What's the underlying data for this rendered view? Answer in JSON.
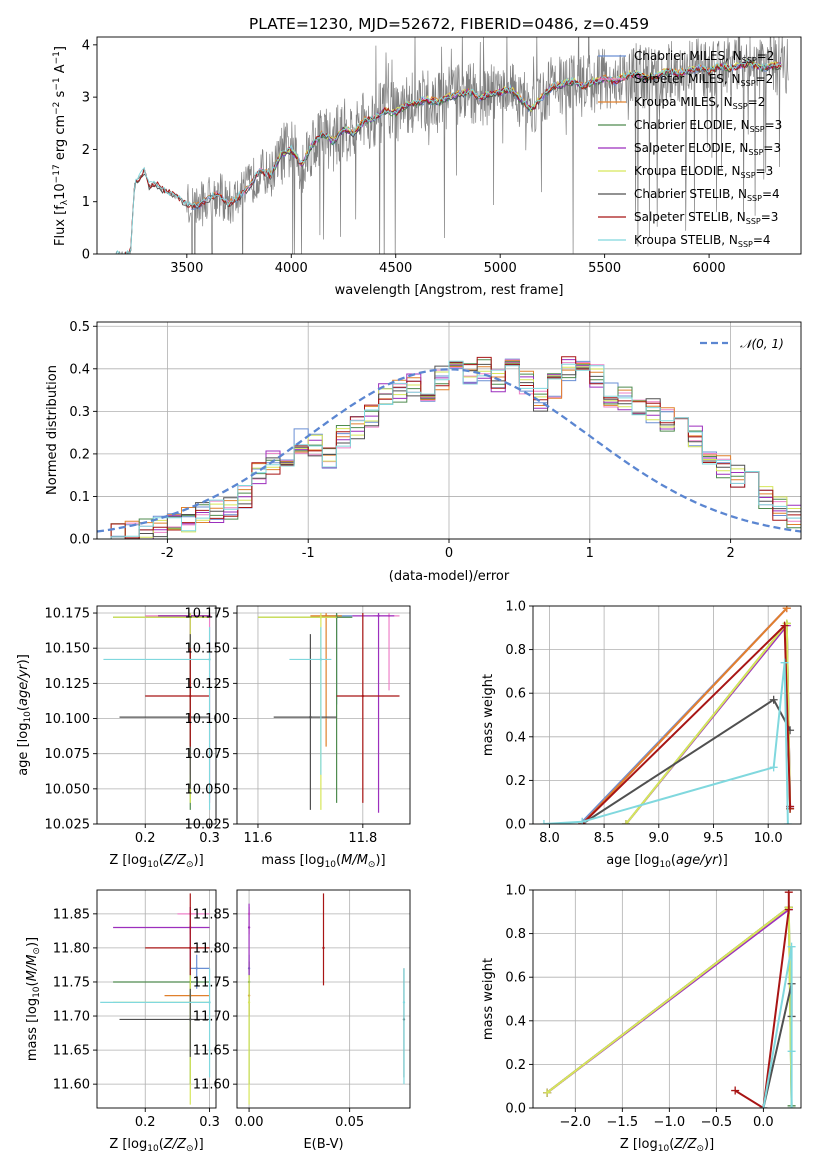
{
  "title": "PLATE=1230, MJD=52672, FIBERID=0486, z=0.459",
  "colors": {
    "spectrum": "#808080",
    "Chabrier MILES": "#6a8fd4",
    "Salpeter MILES": "#ee82c9",
    "Kroupa MILES": "#e0802c",
    "Chabrier ELODIE": "#4f8b4f",
    "Salpeter ELODIE": "#9c2fbd",
    "Kroupa ELODIE": "#d6e65a",
    "Chabrier STELIB": "#505050",
    "Salpeter STELIB": "#a81515",
    "Kroupa STELIB": "#80d8de",
    "gauss": "#5b86d1"
  },
  "chart_data": [
    {
      "id": "spectrum",
      "type": "line",
      "xlabel": "wavelength [Angstrom, rest frame]",
      "ylabel": "Flux [f_λ 10^-17 erg cm^-2 s^-1 A^-1]",
      "xlim": [
        3070,
        6440
      ],
      "ylim": [
        0,
        4.15
      ],
      "xticks": [
        3500,
        4000,
        4500,
        5000,
        5500,
        6000
      ],
      "yticks": [
        0,
        1,
        2,
        3,
        4
      ],
      "grid": false,
      "legend_position": "upper-right",
      "model_x": [
        3160,
        3230,
        3250,
        3280,
        3300,
        3320,
        3350,
        3400,
        3450,
        3500,
        3550,
        3600,
        3650,
        3700,
        3750,
        3800,
        3850,
        3900,
        3950,
        4000,
        4050,
        4100,
        4150,
        4200,
        4250,
        4300,
        4350,
        4400,
        4450,
        4500,
        4550,
        4600,
        4650,
        4700,
        4750,
        4800,
        4850,
        4900,
        4950,
        5000,
        5050,
        5100,
        5150,
        5200,
        5250,
        5300,
        5350,
        5400,
        5450,
        5500,
        5550,
        5600,
        5650,
        5700,
        5750,
        5800,
        5850,
        5900,
        5950,
        6000,
        6050,
        6100,
        6150,
        6200,
        6250,
        6300,
        6350
      ],
      "model_y": [
        0,
        0,
        1.35,
        1.5,
        1.6,
        1.3,
        1.35,
        1.2,
        1.1,
        0.95,
        0.9,
        1.05,
        1.15,
        0.95,
        1.1,
        1.3,
        1.6,
        1.5,
        1.9,
        2.0,
        1.7,
        2.1,
        2.3,
        2.15,
        2.4,
        2.3,
        2.55,
        2.6,
        2.75,
        2.7,
        2.85,
        2.9,
        2.95,
        2.9,
        3.0,
        3.05,
        3.1,
        3.0,
        3.05,
        3.1,
        3.15,
        2.95,
        2.75,
        3.0,
        3.2,
        3.25,
        3.3,
        3.2,
        3.3,
        3.35,
        3.3,
        3.4,
        3.45,
        3.35,
        3.4,
        3.5,
        3.45,
        3.5,
        3.55,
        3.5,
        3.6,
        3.55,
        3.6,
        3.65,
        3.55,
        3.6,
        3.6
      ],
      "series": [
        {
          "name": "Chabrier MILES, N_SSP=2",
          "label": "Chabrier MILES, N",
          "sub": "SSP",
          "suffix": "=2",
          "key": "Chabrier MILES",
          "range": [
            3520,
            6350
          ]
        },
        {
          "name": "Salpeter MILES, N_SSP=2",
          "label": "Salpeter MILES, N",
          "sub": "SSP",
          "suffix": "=2",
          "key": "Salpeter MILES",
          "range": [
            3520,
            6350
          ]
        },
        {
          "name": "Kroupa MILES, N_SSP=2",
          "label": "Kroupa MILES, N",
          "sub": "SSP",
          "suffix": "=2",
          "key": "Kroupa MILES",
          "range": [
            3520,
            6350
          ]
        },
        {
          "name": "Chabrier ELODIE, N_SSP=3",
          "label": "Chabrier ELODIE, N",
          "sub": "SSP",
          "suffix": "=3",
          "key": "Chabrier ELODIE",
          "range": [
            3900,
            6350
          ]
        },
        {
          "name": "Salpeter ELODIE, N_SSP=3",
          "label": "Salpeter ELODIE, N",
          "sub": "SSP",
          "suffix": "=3",
          "key": "Salpeter ELODIE",
          "range": [
            3900,
            6350
          ]
        },
        {
          "name": "Kroupa ELODIE, N_SSP=3",
          "label": "Kroupa ELODIE, N",
          "sub": "SSP",
          "suffix": "=3",
          "key": "Kroupa ELODIE",
          "range": [
            3900,
            6350
          ]
        },
        {
          "name": "Chabrier STELIB, N_SSP=4",
          "label": "Chabrier STELIB, N",
          "sub": "SSP",
          "suffix": "=4",
          "key": "Chabrier STELIB",
          "range": [
            3200,
            6350
          ]
        },
        {
          "name": "Salpeter STELIB, N_SSP=3",
          "label": "Salpeter STELIB, N",
          "sub": "SSP",
          "suffix": "=3",
          "key": "Salpeter STELIB",
          "range": [
            3200,
            6350
          ]
        },
        {
          "name": "Kroupa STELIB, N_SSP=4",
          "label": "Kroupa STELIB, N",
          "sub": "SSP",
          "suffix": "=4",
          "key": "Kroupa STELIB",
          "range": [
            3160,
            6350
          ]
        }
      ]
    },
    {
      "id": "residuals",
      "type": "histogram",
      "xlabel": "(data-model)/error",
      "ylabel": "Normed distribution",
      "xlim": [
        -2.5,
        2.5
      ],
      "ylim": [
        0,
        0.51
      ],
      "xticks": [
        -2,
        -1,
        0,
        1,
        2
      ],
      "yticks": [
        0.0,
        0.1,
        0.2,
        0.3,
        0.4,
        0.5
      ],
      "grid": true,
      "legend_position": "upper-right",
      "legend": "𝒩(0, 1)",
      "bin_width": 0.1,
      "bin_start": -2.5,
      "base_values": [
        0.01,
        0.015,
        0.015,
        0.02,
        0.025,
        0.03,
        0.045,
        0.06,
        0.065,
        0.07,
        0.1,
        0.15,
        0.18,
        0.2,
        0.23,
        0.22,
        0.19,
        0.24,
        0.26,
        0.29,
        0.34,
        0.35,
        0.36,
        0.35,
        0.38,
        0.42,
        0.39,
        0.4,
        0.37,
        0.4,
        0.37,
        0.33,
        0.36,
        0.4,
        0.42,
        0.38,
        0.34,
        0.33,
        0.32,
        0.3,
        0.28,
        0.27,
        0.24,
        0.2,
        0.17,
        0.15,
        0.13,
        0.1,
        0.07,
        0.05
      ]
    },
    {
      "id": "age_vs_Z",
      "type": "errorbar",
      "xlabel": "Z [log10(Z/Z⊙)]",
      "ylabel": "age [log10(age/yr)]",
      "xlim": [
        0.125,
        0.31
      ],
      "ylim": [
        10.025,
        10.18
      ],
      "xticks": [
        0.2,
        0.3
      ],
      "yticks": [
        10.025,
        10.05,
        10.075,
        10.1,
        10.125,
        10.15,
        10.175
      ],
      "grid": true,
      "points": [
        {
          "key": "Chabrier MILES",
          "x": 0.27,
          "y": 10.173,
          "xlo": 0.22,
          "xhi": 0.3,
          "ylo": 10.09,
          "yhi": 10.175
        },
        {
          "key": "Salpeter MILES",
          "x": 0.3,
          "y": 10.173,
          "xlo": 0.2,
          "xhi": 0.3,
          "ylo": 10.04,
          "yhi": 10.175
        },
        {
          "key": "Kroupa MILES",
          "x": 0.27,
          "y": 10.173,
          "xlo": 0.22,
          "xhi": 0.3,
          "ylo": 10.08,
          "yhi": 10.175
        },
        {
          "key": "Chabrier ELODIE",
          "x": 0.27,
          "y": 10.172,
          "xlo": 0.15,
          "xhi": 0.3,
          "ylo": 10.035,
          "yhi": 10.175
        },
        {
          "key": "Salpeter ELODIE",
          "x": 0.27,
          "y": 10.173,
          "xlo": 0.22,
          "xhi": 0.3,
          "ylo": 10.06,
          "yhi": 10.175
        },
        {
          "key": "Kroupa ELODIE",
          "x": 0.27,
          "y": 10.172,
          "xlo": 0.15,
          "xhi": 0.3,
          "ylo": 10.04,
          "yhi": 10.175
        },
        {
          "key": "Chabrier STELIB",
          "x": 0.27,
          "y": 10.101,
          "xlo": 0.16,
          "xhi": 0.3,
          "ylo": 10.05,
          "yhi": 10.16
        },
        {
          "key": "Salpeter STELIB",
          "x": 0.27,
          "y": 10.116,
          "xlo": 0.2,
          "xhi": 0.3,
          "ylo": 10.08,
          "yhi": 10.15
        },
        {
          "key": "Kroupa STELIB",
          "x": 0.3,
          "y": 10.142,
          "xlo": 0.135,
          "xhi": 0.3,
          "ylo": 10.035,
          "yhi": 10.165
        }
      ]
    },
    {
      "id": "age_vs_mass",
      "type": "errorbar",
      "xlabel": "mass [log10(M/M⊙)]",
      "ylabel": "",
      "xlim": [
        11.56,
        11.89
      ],
      "ylim": [
        10.025,
        10.18
      ],
      "xticks": [
        11.6,
        11.8
      ],
      "yticks": [
        10.025,
        10.05,
        10.075,
        10.1,
        10.125,
        10.15,
        10.175
      ],
      "grid": true,
      "points": [
        {
          "key": "Chabrier MILES",
          "x": 11.75,
          "y": 10.173,
          "xlo": 11.72,
          "xhi": 11.78,
          "ylo": 10.11,
          "yhi": 10.175
        },
        {
          "key": "Salpeter MILES",
          "x": 11.85,
          "y": 10.173,
          "xlo": 11.82,
          "xhi": 11.87,
          "ylo": 10.12,
          "yhi": 10.175
        },
        {
          "key": "Kroupa MILES",
          "x": 11.73,
          "y": 10.173,
          "xlo": 11.7,
          "xhi": 11.76,
          "ylo": 10.08,
          "yhi": 10.175
        },
        {
          "key": "Chabrier ELODIE",
          "x": 11.75,
          "y": 10.172,
          "xlo": 11.6,
          "xhi": 11.78,
          "ylo": 10.04,
          "yhi": 10.175
        },
        {
          "key": "Salpeter ELODIE",
          "x": 11.83,
          "y": 10.173,
          "xlo": 11.78,
          "xhi": 11.86,
          "ylo": 10.033,
          "yhi": 10.175
        },
        {
          "key": "Kroupa ELODIE",
          "x": 11.72,
          "y": 10.172,
          "xlo": 11.6,
          "xhi": 11.75,
          "ylo": 10.035,
          "yhi": 10.175
        },
        {
          "key": "Chabrier STELIB",
          "x": 11.7,
          "y": 10.101,
          "xlo": 11.63,
          "xhi": 11.75,
          "ylo": 10.035,
          "yhi": 10.16
        },
        {
          "key": "Salpeter STELIB",
          "x": 11.8,
          "y": 10.116,
          "xlo": 11.75,
          "xhi": 11.87,
          "ylo": 10.04,
          "yhi": 10.175
        },
        {
          "key": "Kroupa STELIB",
          "x": 11.72,
          "y": 10.142,
          "xlo": 11.66,
          "xhi": 11.74,
          "ylo": 10.06,
          "yhi": 10.165
        }
      ]
    },
    {
      "id": "massweight_vs_age",
      "type": "line",
      "xlabel": "age [log10(age/yr)]",
      "ylabel": "mass weight",
      "xlim": [
        7.85,
        10.3
      ],
      "ylim": [
        0,
        1
      ],
      "xticks": [
        8.0,
        8.5,
        9.0,
        9.5,
        10.0
      ],
      "yticks": [
        0.0,
        0.2,
        0.4,
        0.6,
        0.8,
        1.0
      ],
      "grid": true,
      "series": [
        {
          "key": "Chabrier MILES",
          "x": [
            8.3,
            10.17
          ],
          "y": [
            0.01,
            0.99
          ]
        },
        {
          "key": "Salpeter MILES",
          "x": [
            8.3,
            10.17
          ],
          "y": [
            0.0,
            0.99
          ]
        },
        {
          "key": "Kroupa MILES",
          "x": [
            8.3,
            10.17
          ],
          "y": [
            0.0,
            0.99
          ]
        },
        {
          "key": "Chabrier ELODIE",
          "x": [
            8.7,
            10.17,
            10.2
          ],
          "y": [
            0.0,
            0.92,
            0.07
          ]
        },
        {
          "key": "Salpeter ELODIE",
          "x": [
            8.7,
            10.17,
            10.2
          ],
          "y": [
            0.0,
            0.91,
            0.08
          ]
        },
        {
          "key": "Kroupa ELODIE",
          "x": [
            8.7,
            10.17,
            10.2
          ],
          "y": [
            0.0,
            0.92,
            0.07
          ]
        },
        {
          "key": "Chabrier STELIB",
          "x": [
            8.3,
            10.05,
            10.2
          ],
          "y": [
            0.0,
            0.57,
            0.43
          ]
        },
        {
          "key": "Salpeter STELIB",
          "x": [
            8.3,
            10.15,
            10.2,
            10.2
          ],
          "y": [
            0.0,
            0.91,
            0.08,
            0.07
          ]
        },
        {
          "key": "Kroupa STELIB",
          "x": [
            7.95,
            8.3,
            10.05,
            10.15,
            10.18
          ],
          "y": [
            0.0,
            0.01,
            0.26,
            0.74,
            0.0
          ]
        }
      ]
    },
    {
      "id": "mass_vs_Z",
      "type": "errorbar",
      "xlabel": "Z [log10(Z/Z⊙)]",
      "ylabel": "mass [log10(M/M⊙)]",
      "xlim": [
        0.125,
        0.31
      ],
      "ylim": [
        11.565,
        11.885
      ],
      "xticks": [
        0.2,
        0.3
      ],
      "yticks": [
        11.6,
        11.65,
        11.7,
        11.75,
        11.8,
        11.85
      ],
      "grid": true,
      "points": [
        {
          "key": "Chabrier MILES",
          "x": 0.28,
          "y": 11.77,
          "xlo": 0.27,
          "xhi": 0.3,
          "ylo": 11.74,
          "yhi": 11.79
        },
        {
          "key": "Salpeter MILES",
          "x": 0.27,
          "y": 11.85,
          "xlo": 0.25,
          "xhi": 0.3,
          "ylo": 11.82,
          "yhi": 11.86
        },
        {
          "key": "Kroupa MILES",
          "x": 0.27,
          "y": 11.73,
          "xlo": 0.23,
          "xhi": 0.3,
          "ylo": 11.7,
          "yhi": 11.75
        },
        {
          "key": "Chabrier ELODIE",
          "x": 0.27,
          "y": 11.75,
          "xlo": 0.15,
          "xhi": 0.3,
          "ylo": 11.6,
          "yhi": 11.78
        },
        {
          "key": "Salpeter ELODIE",
          "x": 0.27,
          "y": 11.83,
          "xlo": 0.15,
          "xhi": 0.3,
          "ylo": 11.78,
          "yhi": 11.86
        },
        {
          "key": "Kroupa ELODIE",
          "x": 0.27,
          "y": 11.72,
          "xlo": 0.15,
          "xhi": 0.3,
          "ylo": 11.57,
          "yhi": 11.76
        },
        {
          "key": "Chabrier STELIB",
          "x": 0.27,
          "y": 11.695,
          "xlo": 0.16,
          "xhi": 0.3,
          "ylo": 11.64,
          "yhi": 11.74
        },
        {
          "key": "Salpeter STELIB",
          "x": 0.27,
          "y": 11.8,
          "xlo": 0.2,
          "xhi": 0.3,
          "ylo": 11.76,
          "yhi": 11.88
        },
        {
          "key": "Kroupa STELIB",
          "x": 0.3,
          "y": 11.72,
          "xlo": 0.13,
          "xhi": 0.3,
          "ylo": 11.61,
          "yhi": 11.77
        }
      ]
    },
    {
      "id": "mass_vs_EBV",
      "type": "errorbar",
      "xlabel": "E(B-V)",
      "ylabel": "",
      "xlim": [
        -0.006,
        0.08
      ],
      "ylim": [
        11.565,
        11.885
      ],
      "xticks": [
        0.0,
        0.05
      ],
      "xticklabels": [
        "0.00",
        "0.05"
      ],
      "yticks": [
        11.6,
        11.65,
        11.7,
        11.75,
        11.8,
        11.85
      ],
      "grid": true,
      "points": [
        {
          "key": "Chabrier MILES",
          "x": 0.0,
          "y": 11.77,
          "ylo": 11.75,
          "yhi": 11.79
        },
        {
          "key": "Salpeter MILES",
          "x": 0.0,
          "y": 11.85,
          "ylo": 11.82,
          "yhi": 11.86
        },
        {
          "key": "Kroupa MILES",
          "x": 0.0,
          "y": 11.73,
          "ylo": 11.7,
          "yhi": 11.75
        },
        {
          "key": "Chabrier ELODIE",
          "x": 0.0,
          "y": 11.75,
          "ylo": 11.6,
          "yhi": 11.78
        },
        {
          "key": "Salpeter ELODIE",
          "x": 0.0,
          "y": 11.83,
          "ylo": 11.76,
          "yhi": 11.865
        },
        {
          "key": "Kroupa ELODIE",
          "x": 0.0,
          "y": 11.72,
          "ylo": 11.57,
          "yhi": 11.76
        },
        {
          "key": "Chabrier STELIB",
          "x": 0.077,
          "y": 11.695,
          "ylo": 11.61,
          "yhi": 11.77
        },
        {
          "key": "Salpeter STELIB",
          "x": 0.037,
          "y": 11.8,
          "ylo": 11.745,
          "yhi": 11.88
        },
        {
          "key": "Kroupa STELIB",
          "x": 0.077,
          "y": 11.72,
          "ylo": 11.6,
          "yhi": 11.77
        }
      ]
    },
    {
      "id": "massweight_vs_Z",
      "type": "line",
      "xlabel": "Z [log10(Z/Z⊙)]",
      "ylabel": "mass weight",
      "xlim": [
        -2.45,
        0.4
      ],
      "ylim": [
        0,
        1
      ],
      "xticks": [
        -2.0,
        -1.5,
        -1.0,
        -0.5,
        0.0
      ],
      "yticks": [
        0.0,
        0.2,
        0.4,
        0.6,
        0.8,
        1.0
      ],
      "grid": true,
      "series": [
        {
          "key": "Chabrier MILES",
          "x": [
            -2.3,
            0.27
          ],
          "y": [
            0.07,
            0.92
          ]
        },
        {
          "key": "Salpeter MILES",
          "x": [
            -2.3,
            0.27
          ],
          "y": [
            0.07,
            0.92
          ]
        },
        {
          "key": "Kroupa MILES",
          "x": [
            -2.3,
            0.27
          ],
          "y": [
            0.07,
            0.92
          ]
        },
        {
          "key": "Chabrier ELODIE",
          "x": [
            -2.3,
            0.27,
            0.3
          ],
          "y": [
            0.07,
            0.92,
            0.01
          ]
        },
        {
          "key": "Salpeter ELODIE",
          "x": [
            -2.3,
            0.27
          ],
          "y": [
            0.07,
            0.91
          ]
        },
        {
          "key": "Kroupa ELODIE",
          "x": [
            -2.3,
            0.27,
            0.3
          ],
          "y": [
            0.07,
            0.92,
            0.0
          ]
        },
        {
          "key": "Chabrier STELIB",
          "x": [
            0.0,
            0.3,
            0.3
          ],
          "y": [
            0.0,
            0.57,
            0.42
          ]
        },
        {
          "key": "Salpeter STELIB",
          "x": [
            -0.3,
            0.0,
            0.27,
            0.27
          ],
          "y": [
            0.08,
            0.0,
            0.91,
            0.99
          ]
        },
        {
          "key": "Kroupa STELIB",
          "x": [
            0.0,
            0.3,
            0.3,
            0.3
          ],
          "y": [
            0.0,
            0.74,
            0.26,
            0.0
          ]
        }
      ]
    }
  ]
}
